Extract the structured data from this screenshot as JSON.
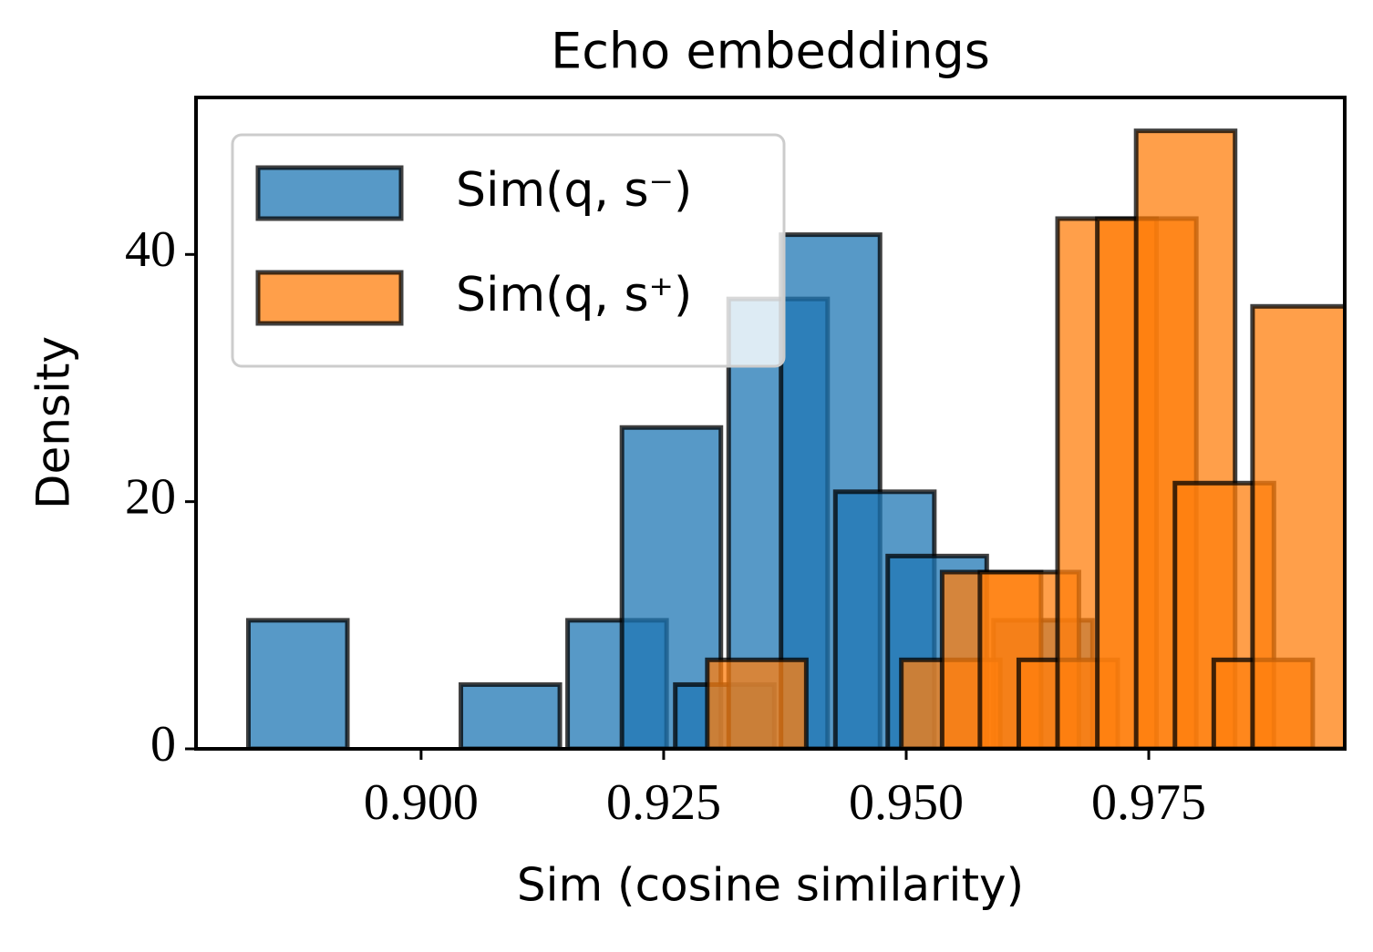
{
  "chart_data": {
    "type": "histogram",
    "title": "Echo embeddings",
    "x_label": "Sim (cosine similarity)",
    "y_label": "Density",
    "xlim": [
      0.8768,
      0.9952
    ],
    "ylim": [
      0,
      52.7
    ],
    "xticks": [
      {
        "value": 0.9,
        "label": "0.900"
      },
      {
        "value": 0.925,
        "label": "0.925"
      },
      {
        "value": 0.95,
        "label": "0.950"
      },
      {
        "value": 0.975,
        "label": "0.975"
      }
    ],
    "yticks": [
      0,
      20,
      40
    ],
    "bar_width": 0.0102,
    "legend_position": "upper left",
    "series": [
      {
        "name": "Sim(q, s⁻)",
        "color": "#1f77b4",
        "x": [
          0.8873,
          0.8927,
          0.8983,
          0.9037,
          0.9092,
          0.9202,
          0.9258,
          0.9313,
          0.9368,
          0.9422,
          0.9478,
          0.9532,
          0.9641
        ],
        "values": [
          10.4,
          0,
          0,
          0,
          5.2,
          10.4,
          26,
          5.2,
          36.4,
          41.6,
          20.8,
          15.6,
          10.4
        ]
      },
      {
        "name": "Sim(q, s⁺)",
        "color": "#ff7f0e",
        "x": [
          0.9346,
          0.9546,
          0.9588,
          0.9627,
          0.9667,
          0.9707,
          0.9748,
          0.9788,
          0.9828,
          0.9868,
          0.9908
        ],
        "values": [
          7.2,
          7.2,
          14.3,
          14.3,
          7.2,
          42.9,
          42.9,
          50,
          21.5,
          7.2,
          35.8
        ]
      }
    ]
  }
}
